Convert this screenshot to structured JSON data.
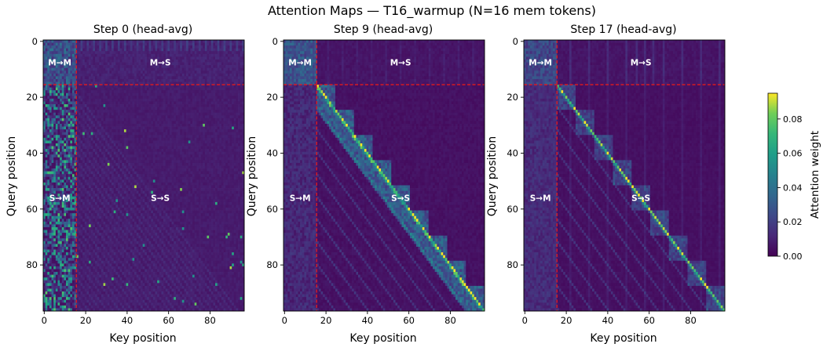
{
  "figure": {
    "suptitle": "Attention Maps — T16_warmup (N=16 mem tokens)"
  },
  "chart_data": [
    {
      "type": "heatmap",
      "title": "Step 0 (head-avg)",
      "xlabel": "Key position",
      "ylabel": "Query position",
      "size": 97,
      "mem_boundary": 15.5,
      "x_ticks": [
        0,
        20,
        40,
        60,
        80
      ],
      "y_ticks": [
        0,
        20,
        40,
        60,
        80
      ],
      "region_labels": {
        "mm": "M→M",
        "ms": "M→S",
        "sm": "S→M",
        "ss": "S→S"
      },
      "pattern": "uniform"
    },
    {
      "type": "heatmap",
      "title": "Step 9 (head-avg)",
      "xlabel": "Key position",
      "ylabel": "Query position",
      "size": 97,
      "mem_boundary": 15.5,
      "x_ticks": [
        0,
        20,
        40,
        60,
        80
      ],
      "y_ticks": [
        0,
        20,
        40,
        60,
        80
      ],
      "region_labels": {
        "mm": "M→M",
        "ms": "M→S",
        "sm": "S→M",
        "ss": "S→S"
      },
      "pattern": "blocks"
    },
    {
      "type": "heatmap",
      "title": "Step 17 (head-avg)",
      "xlabel": "Key position",
      "ylabel": "Query position",
      "size": 97,
      "mem_boundary": 15.5,
      "x_ticks": [
        0,
        20,
        40,
        60,
        80
      ],
      "y_ticks": [
        0,
        20,
        40,
        60,
        80
      ],
      "region_labels": {
        "mm": "M→M",
        "ms": "M→S",
        "sm": "S→M",
        "ss": "S→S"
      },
      "pattern": "diagonal"
    }
  ],
  "colorbar": {
    "label": "Attention weight",
    "min": 0.0,
    "max": 0.095,
    "ticks": [
      "0.00",
      "0.02",
      "0.04",
      "0.06",
      "0.08"
    ],
    "tick_values": [
      0.0,
      0.02,
      0.04,
      0.06,
      0.08
    ],
    "colormap": "viridis"
  },
  "colors": {
    "boundary_line": "#e41a1c",
    "region_label": "#ffffff"
  }
}
